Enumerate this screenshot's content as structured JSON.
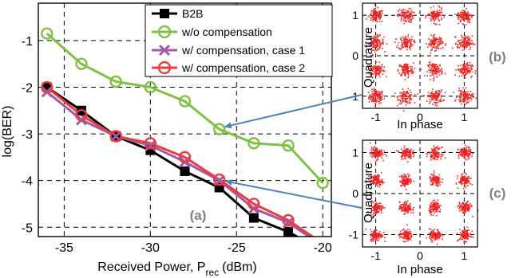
{
  "chart_data": [
    {
      "type": "line",
      "panel_label": "(a)",
      "xlabel": "Received Power, P",
      "xlabel_sub": "rec",
      "xlabel_unit": "(dBm)",
      "ylabel": "log(BER)",
      "xlim": [
        -36.5,
        -19.5
      ],
      "ylim": [
        -5.2,
        -0.2
      ],
      "xticks": [
        -35,
        -30,
        -25,
        -20
      ],
      "yticks": [
        -1,
        -2,
        -3,
        -4,
        -5
      ],
      "grid": true,
      "legend_position": "top-right",
      "series": [
        {
          "name": "B2B",
          "color": "#000000",
          "marker": "square",
          "x": [
            -36,
            -34,
            -32,
            -30,
            -28,
            -26,
            -24,
            -22,
            -20
          ],
          "y": [
            -2.0,
            -2.5,
            -3.05,
            -3.35,
            -3.8,
            -4.15,
            -4.8,
            -5.1,
            -5.5
          ]
        },
        {
          "name": "w/o compensation",
          "color": "#7dc242",
          "marker": "circle",
          "x": [
            -36,
            -34,
            -32,
            -30,
            -28,
            -26,
            -24,
            -22,
            -20
          ],
          "y": [
            -0.85,
            -1.5,
            -1.88,
            -2.0,
            -2.3,
            -2.9,
            -3.2,
            -3.25,
            -4.05
          ]
        },
        {
          "name": "w/ compensation, case 1",
          "color": "#a05aa8",
          "marker": "x",
          "x": [
            -36,
            -34,
            -32,
            -30,
            -28,
            -26,
            -24,
            -22,
            -20
          ],
          "y": [
            -2.1,
            -2.7,
            -3.05,
            -3.25,
            -3.6,
            -4.0,
            -4.6,
            -4.9,
            -5.4
          ]
        },
        {
          "name": "w/ compensation, case 2",
          "color": "#ee3b3b",
          "marker": "circle",
          "x": [
            -36,
            -34,
            -32,
            -30,
            -28,
            -26,
            -24,
            -22,
            -20
          ],
          "y": [
            -2.0,
            -2.6,
            -3.05,
            -3.2,
            -3.5,
            -3.98,
            -4.5,
            -4.85,
            -5.35
          ]
        }
      ]
    },
    {
      "type": "scatter",
      "panel_label": "(b)",
      "xlabel": "In phase",
      "ylabel": "Quadrature",
      "xticks": [
        -1,
        0,
        1
      ],
      "yticks": [
        1,
        0,
        -1
      ],
      "grid": true,
      "color": "#ee2222",
      "constellation": "16-QAM",
      "cluster_spread": "wide"
    },
    {
      "type": "scatter",
      "panel_label": "(c)",
      "xlabel": "In phase",
      "ylabel": "Quadrature",
      "xticks": [
        -1,
        0,
        1
      ],
      "yticks": [
        1,
        0,
        -1
      ],
      "grid": true,
      "color": "#ee2222",
      "constellation": "16-QAM",
      "cluster_spread": "narrow"
    }
  ],
  "arrow_color": "#4f81bd"
}
